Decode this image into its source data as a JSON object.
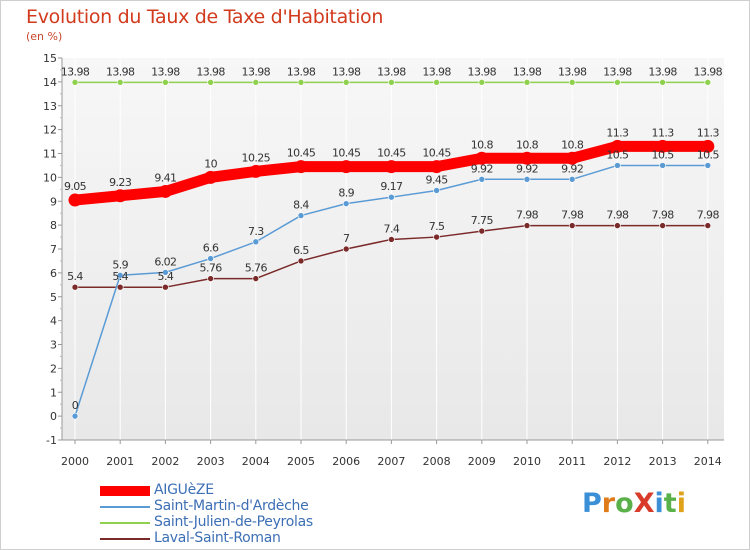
{
  "title": "Evolution du Taux de Taxe d'Habitation",
  "subtitle": "(en %)",
  "logo": {
    "text": "ProXiti",
    "letter_colors": [
      "#3a8fd6",
      "#e07b1a",
      "#5ab14a",
      "#d93b2a",
      "#3a8fd6",
      "#5ab14a",
      "#e0a21a"
    ]
  },
  "chart_data": {
    "type": "line",
    "x": [
      2000,
      2001,
      2002,
      2003,
      2004,
      2005,
      2006,
      2007,
      2008,
      2009,
      2010,
      2011,
      2012,
      2013,
      2014
    ],
    "x_tick_labels": [
      "2000",
      "2001",
      "2002",
      "2003",
      "2004",
      "2005",
      "2006",
      "2007",
      "2008",
      "2009",
      "2010",
      "2011",
      "2012",
      "2013",
      "2014"
    ],
    "y_tick_labels": [
      "-1",
      "0",
      "1",
      "2",
      "3",
      "4",
      "5",
      "6",
      "7",
      "8",
      "9",
      "10",
      "11",
      "12",
      "13",
      "14",
      "15"
    ],
    "ylim": [
      -1,
      15
    ],
    "grid": "vertical",
    "legend_position": "bottom-left",
    "series": [
      {
        "name": "AIGUèZE",
        "color": "#ff0000",
        "style": "thick",
        "values": [
          9.05,
          9.23,
          9.41,
          10,
          10.25,
          10.45,
          10.45,
          10.45,
          10.45,
          10.8,
          10.8,
          10.8,
          11.3,
          11.3,
          11.3
        ],
        "labels": [
          "9.05",
          "9.23",
          "9.41",
          "10",
          "10.25",
          "10.45",
          "10.45",
          "10.45",
          "10.45",
          "10.8",
          "10.8",
          "10.8",
          "11.3",
          "11.3",
          "11.3"
        ]
      },
      {
        "name": "Saint-Martin-d'Ardèche",
        "color": "#5b9bd5",
        "style": "thin",
        "values": [
          0,
          5.9,
          6.02,
          6.6,
          7.3,
          8.4,
          8.9,
          9.17,
          9.45,
          9.92,
          9.92,
          9.92,
          10.5,
          10.5,
          10.5
        ],
        "labels": [
          "0",
          "5.9",
          "6.02",
          "6.6",
          "7.3",
          "8.4",
          "8.9",
          "9.17",
          "9.45",
          "9.92",
          "9.92",
          "9.92",
          "10.5",
          "10.5",
          "10.5"
        ]
      },
      {
        "name": "Saint-Julien-de-Peyrolas",
        "color": "#8fd14f",
        "style": "thin",
        "values": [
          13.98,
          13.98,
          13.98,
          13.98,
          13.98,
          13.98,
          13.98,
          13.98,
          13.98,
          13.98,
          13.98,
          13.98,
          13.98,
          13.98,
          13.98
        ],
        "labels": [
          "13.98",
          "13.98",
          "13.98",
          "13.98",
          "13.98",
          "13.98",
          "13.98",
          "13.98",
          "13.98",
          "13.98",
          "13.98",
          "13.98",
          "13.98",
          "13.98",
          "13.98"
        ]
      },
      {
        "name": "Laval-Saint-Roman",
        "color": "#7b2a2a",
        "style": "thin",
        "values": [
          5.4,
          5.4,
          5.4,
          5.76,
          5.76,
          6.5,
          7,
          7.4,
          7.5,
          7.75,
          7.98,
          7.98,
          7.98,
          7.98,
          7.98
        ],
        "labels": [
          "5.4",
          "5.4",
          "5.4",
          "5.76",
          "5.76",
          "6.5",
          "7",
          "7.4",
          "7.5",
          "7.75",
          "7.98",
          "7.98",
          "7.98",
          "7.98",
          "7.98"
        ]
      }
    ]
  }
}
